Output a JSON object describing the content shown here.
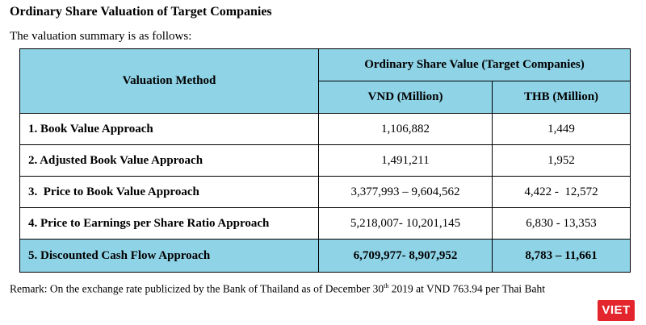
{
  "heading": "Ordinary Share Valuation of Target Companies",
  "intro": "The valuation summary is as follows:",
  "table": {
    "method_header": "Valuation Method",
    "group_header": "Ordinary Share Value (Target Companies)",
    "vnd_header": "VND (Million)",
    "thb_header": "THB (Million)",
    "rows": [
      {
        "method": "1. Book Value Approach",
        "vnd": "1,106,882",
        "thb": "1,449"
      },
      {
        "method": "2. Adjusted Book Value Approach",
        "vnd": "1,491,211",
        "thb": "1,952"
      },
      {
        "method": "3.  Price to Book Value Approach",
        "vnd": "3,377,993 – 9,604,562",
        "thb": "4,422 -  12,572"
      },
      {
        "method": "4. Price to Earnings per Share Ratio Approach",
        "vnd": "5,218,007- 10,201,145",
        "thb": "6,830 - 13,353"
      },
      {
        "method": "5. Discounted Cash Flow Approach",
        "vnd": "6,709,977- 8,907,952",
        "thb": "8,783 – 11,661"
      }
    ]
  },
  "remark": {
    "before": "Remark: On the exchange rate publicized by the Bank of Thailand as of December 30",
    "sup": "th",
    "after": " 2019 at VND 763.94 per Thai Baht"
  },
  "logo": {
    "text": "VIET",
    "color": "#e3262e"
  },
  "colors": {
    "header_fill": "#8fd3e6"
  }
}
